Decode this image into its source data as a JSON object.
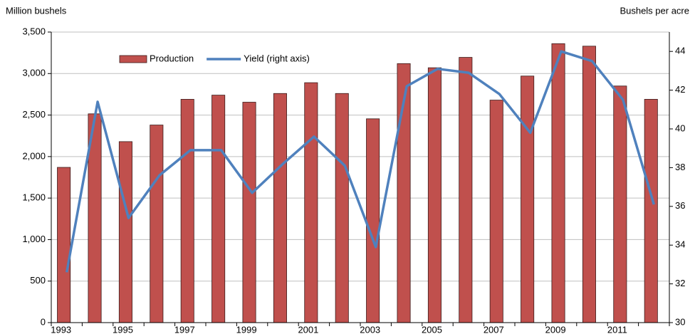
{
  "chart_data": {
    "type": "bar_line",
    "y_label": "Million bushels",
    "y2_label": "Bushels per acre",
    "categories": [
      "1993",
      null,
      "1995",
      null,
      "1997",
      null,
      "1999",
      null,
      "2001",
      null,
      "2003",
      null,
      "2005",
      null,
      "2007",
      null,
      "2009",
      null,
      "2011",
      null
    ],
    "series": [
      {
        "name": "Production",
        "type": "bar",
        "color": "#c0504d",
        "values": [
          1870,
          2515,
          2180,
          2380,
          2690,
          2740,
          2655,
          2760,
          2890,
          2760,
          2455,
          3120,
          3070,
          3195,
          2680,
          2970,
          3360,
          3330,
          2850,
          2690
        ]
      },
      {
        "name": "Yield (right axis)",
        "type": "line",
        "axis": "y2",
        "color": "#4f81bd",
        "values": [
          32.6,
          41.4,
          35.4,
          37.6,
          38.9,
          38.9,
          36.7,
          38.2,
          39.6,
          38.1,
          33.9,
          42.2,
          43.1,
          42.9,
          41.8,
          39.8,
          44.0,
          43.5,
          41.5,
          36.1
        ]
      }
    ],
    "ylim": [
      0,
      3500
    ],
    "yticks": [
      0,
      500,
      {
        "value": 1000,
        "label": "1,000"
      },
      {
        "value": 1500,
        "label": "1,500"
      },
      {
        "value": 2000,
        "label": "2,000"
      },
      {
        "value": 2500,
        "label": "2,500"
      },
      {
        "value": 3000,
        "label": "3,000"
      },
      {
        "value": 3500,
        "label": "3,500"
      }
    ],
    "y2lim": [
      30,
      45
    ],
    "y2ticks": [
      30,
      32,
      34,
      36,
      38,
      40,
      42,
      44
    ],
    "grid": true,
    "legend": "top"
  }
}
